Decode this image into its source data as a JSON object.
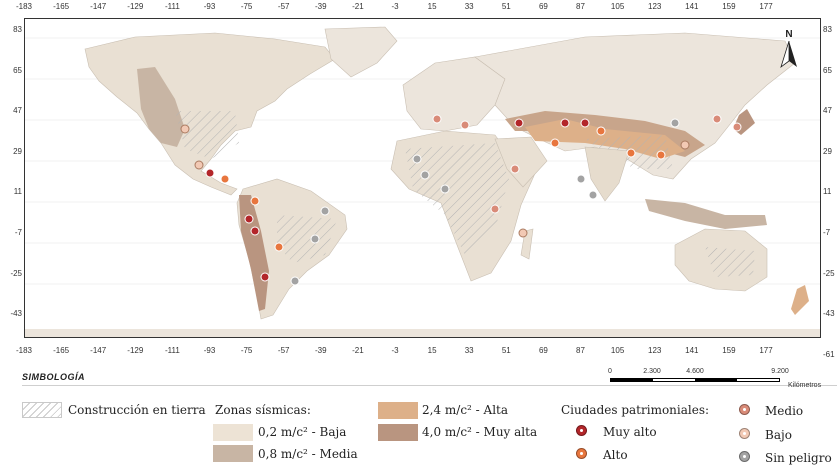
{
  "map": {
    "top_ticks": [
      "-183",
      "-165",
      "-147",
      "-129",
      "-111",
      "-93",
      "-75",
      "-57",
      "-39",
      "-21",
      "-3",
      "15",
      "33",
      "51",
      "69",
      "87",
      "105",
      "123",
      "141",
      "159",
      "177"
    ],
    "bottom_ticks": [
      "-183",
      "-165",
      "-147",
      "-129",
      "-111",
      "-93",
      "-75",
      "-57",
      "-39",
      "-21",
      "-3",
      "15",
      "33",
      "51",
      "69",
      "87",
      "105",
      "123",
      "141",
      "159",
      "177"
    ],
    "left_ticks": [
      "83",
      "65",
      "47",
      "29",
      "11",
      "-7",
      "-25",
      "-43"
    ],
    "right_ticks": [
      "83",
      "65",
      "47",
      "29",
      "11",
      "-7",
      "-25",
      "-43",
      "-61"
    ],
    "north_label": "N"
  },
  "legend": {
    "title": "SIMBOLOGÍA",
    "earth_construction": "Construcción en tierra",
    "seismic_heading": "Zonas sísmicas:",
    "seismic_low": "0,2 m/c² - Baja",
    "seismic_medium": "0,8 m/c² - Media",
    "seismic_high": "2,4 m/c² - Alta",
    "seismic_very_high": "4,0 m/c² - Muy alta",
    "cities_heading": "Ciudades patrimoniales:",
    "city_very_high": "Muy alto",
    "city_high": "Alto",
    "city_medium": "Medio",
    "city_low": "Bajo",
    "city_none": "Sin peligro"
  },
  "scale": {
    "labels": [
      "0",
      "2.300",
      "4.600",
      "9.200"
    ],
    "unit": "Kilómetros"
  },
  "colors": {
    "seismic_low": "#ede3d5",
    "seismic_medium": "#c8b5a4",
    "seismic_high": "#ddb089",
    "seismic_very_high": "#b99580",
    "city_very_high": "#b3262a",
    "city_high": "#e8763e",
    "city_medium": "#d98b78",
    "city_low": "#f2c9b4",
    "city_none": "#a3a3a3"
  }
}
